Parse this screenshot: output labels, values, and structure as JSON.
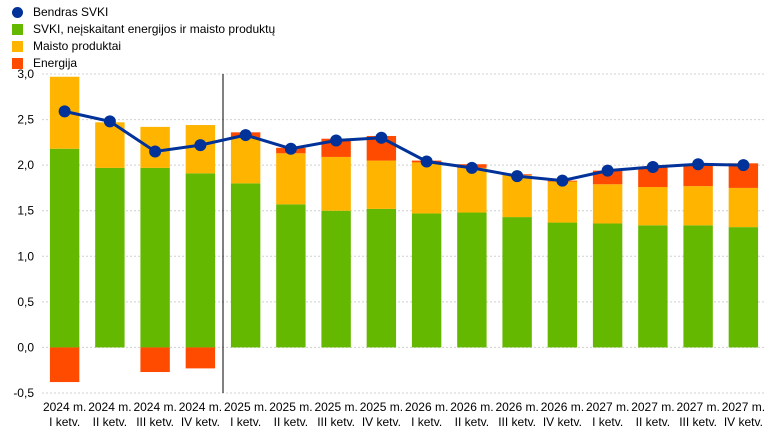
{
  "chart_data": {
    "type": "bar",
    "stacked": true,
    "categories": [
      [
        "2024 m.",
        "I ketv."
      ],
      [
        "2024 m.",
        "II ketv."
      ],
      [
        "2024 m.",
        "III ketv."
      ],
      [
        "2024 m.",
        "IV ketv."
      ],
      [
        "2025 m.",
        "I ketv."
      ],
      [
        "2025 m.",
        "II ketv."
      ],
      [
        "2025 m.",
        "III ketv."
      ],
      [
        "2025 m.",
        "IV ketv."
      ],
      [
        "2026 m.",
        "I ketv."
      ],
      [
        "2026 m.",
        "II ketv."
      ],
      [
        "2026 m.",
        "III ketv."
      ],
      [
        "2026 m.",
        "IV ketv."
      ],
      [
        "2027 m.",
        "I ketv."
      ],
      [
        "2027 m.",
        "II ketv."
      ],
      [
        "2027 m.",
        "III ketv."
      ],
      [
        "2027 m.",
        "IV ketv."
      ]
    ],
    "ylim": [
      -0.5,
      3.0
    ],
    "yticks": [
      "3,0",
      "2,5",
      "2,0",
      "1,5",
      "1,0",
      "0,5",
      "0,0",
      "-0,5"
    ],
    "ytick_values": [
      3.0,
      2.5,
      2.0,
      1.5,
      1.0,
      0.5,
      0.0,
      -0.5
    ],
    "grid": true,
    "legend_position": "top-left",
    "series": [
      {
        "name": "SVKI, neįskaitant energijos ir maisto produktų",
        "color": "#65b800",
        "values": [
          2.18,
          1.97,
          1.97,
          1.91,
          1.8,
          1.57,
          1.5,
          1.52,
          1.47,
          1.48,
          1.43,
          1.37,
          1.36,
          1.34,
          1.34,
          1.32
        ]
      },
      {
        "name": "Maisto produktai",
        "color": "#ffb400",
        "values": [
          0.79,
          0.5,
          0.45,
          0.53,
          0.5,
          0.56,
          0.59,
          0.53,
          0.56,
          0.49,
          0.46,
          0.45,
          0.43,
          0.42,
          0.43,
          0.43
        ]
      },
      {
        "name": "Energija",
        "color": "#ff4b00",
        "values": [
          -0.38,
          0.0,
          -0.27,
          -0.23,
          0.06,
          0.06,
          0.2,
          0.27,
          0.02,
          0.04,
          0.01,
          0.01,
          0.15,
          0.22,
          0.24,
          0.27
        ]
      }
    ],
    "line": {
      "name": "Bendras SVKI",
      "color": "#003299",
      "values": [
        2.59,
        2.48,
        2.15,
        2.22,
        2.33,
        2.18,
        2.27,
        2.3,
        2.04,
        1.97,
        1.88,
        1.83,
        1.94,
        1.98,
        2.01,
        2.0
      ]
    },
    "divider_after_index": 3
  }
}
